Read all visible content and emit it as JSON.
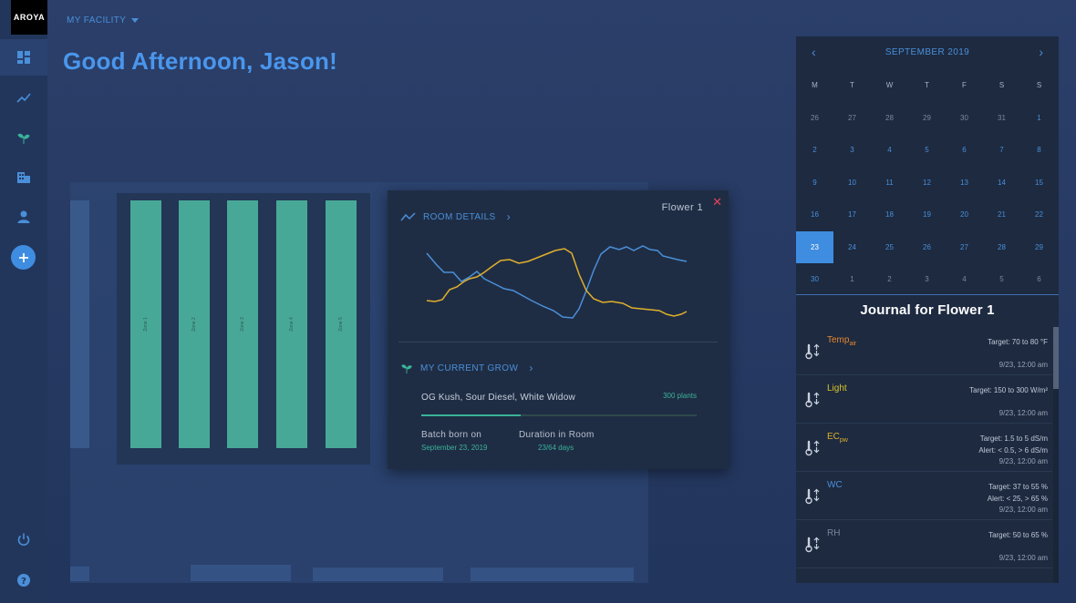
{
  "app": {
    "logo": "AROYA"
  },
  "header": {
    "facility": "MY FACILITY",
    "greeting": "Good Afternoon, Jason!"
  },
  "zones": [
    "Zone 1",
    "Zone 2",
    "Zone 3",
    "Zone 4",
    "Zone 5"
  ],
  "room_popup": {
    "room_name": "Flower 1",
    "details_label": "ROOM DETAILS",
    "grow_label": "MY CURRENT GROW",
    "strains": "OG Kush, Sour Diesel, White Widow",
    "plants": "300 plants",
    "progress": 0.36,
    "batch_label": "Batch born on",
    "batch_value": "September 23, 2019",
    "duration_label": "Duration in Room",
    "duration_value": "23/64 days",
    "colors": {
      "series_a": "#4a8fd9",
      "series_b": "#e0b02c"
    }
  },
  "calendar": {
    "title": "SEPTEMBER 2019",
    "weekdays": [
      "M",
      "T",
      "W",
      "T",
      "F",
      "S",
      "S"
    ],
    "weeks": [
      [
        "26",
        "27",
        "28",
        "29",
        "30",
        "31",
        "1"
      ],
      [
        "2",
        "3",
        "4",
        "5",
        "6",
        "7",
        "8"
      ],
      [
        "9",
        "10",
        "11",
        "12",
        "13",
        "14",
        "15"
      ],
      [
        "16",
        "17",
        "18",
        "19",
        "20",
        "21",
        "22"
      ],
      [
        "23",
        "24",
        "25",
        "26",
        "27",
        "28",
        "29"
      ],
      [
        "30",
        "1",
        "2",
        "3",
        "4",
        "5",
        "6"
      ]
    ],
    "selected": "23"
  },
  "journal": {
    "title": "Journal for Flower 1",
    "entries": [
      {
        "name": "Temp",
        "sub": "air",
        "color": "#e8872c",
        "target": "Target: 70 to 80 °F",
        "alert": "",
        "time": "9/23, 12:00 am"
      },
      {
        "name": "Light",
        "sub": "",
        "color": "#d8c52a",
        "target": "Target: 150 to 300 W/m²",
        "alert": "",
        "time": "9/23, 12:00 am"
      },
      {
        "name": "EC",
        "sub": "pw",
        "color": "#e0b02c",
        "target": "Target: 1.5 to 5 dS/m",
        "alert": "Alert: < 0.5, > 6 dS/m",
        "time": "9/23, 12:00 am"
      },
      {
        "name": "WC",
        "sub": "",
        "color": "#4a8fd9",
        "target": "Target: 37 to 55 %",
        "alert": "Alert: < 25, > 65 %",
        "time": "9/23, 12:00 am"
      },
      {
        "name": "RH",
        "sub": "",
        "color": "#7a8597",
        "target": "Target: 50 to 65 %",
        "alert": "",
        "time": "9/23, 12:00 am"
      }
    ]
  }
}
